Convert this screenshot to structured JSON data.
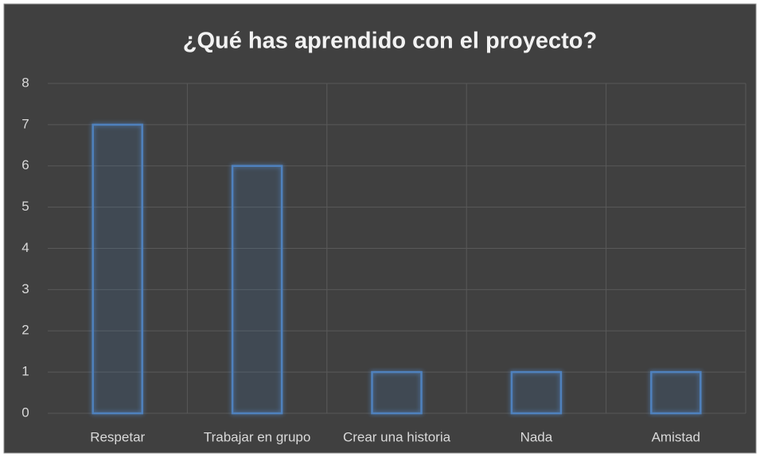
{
  "chart_data": {
    "type": "bar",
    "title": "¿Qué has aprendido con el proyecto?",
    "categories": [
      "Respetar",
      "Trabajar en grupo",
      "Crear una historia",
      "Nada",
      "Amistad"
    ],
    "values": [
      7,
      6,
      1,
      1,
      1
    ],
    "color": "#4f81bd",
    "ylim": [
      0,
      8
    ],
    "yticks": [
      0,
      1,
      2,
      3,
      4,
      5,
      6,
      7,
      8
    ],
    "grid": true
  }
}
